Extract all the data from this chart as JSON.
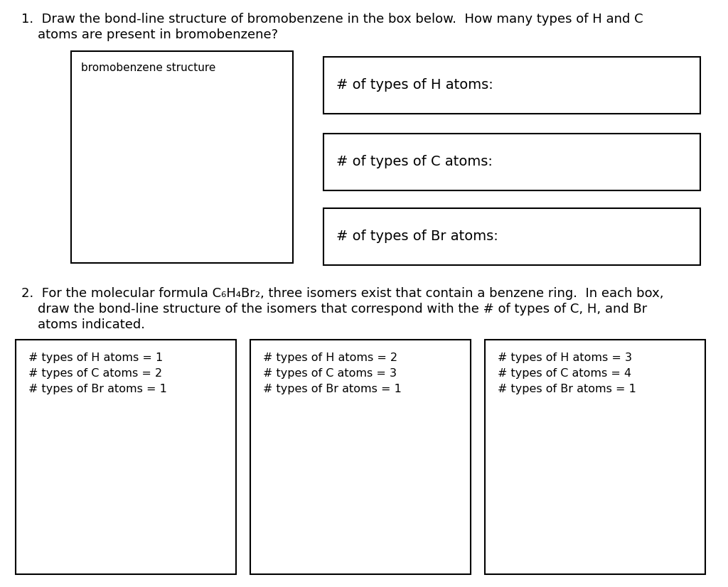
{
  "background_color": "#ffffff",
  "q1_line1": "1.  Draw the bond-line structure of bromobenzene in the box below.  How many types of H and C",
  "q1_line2": "    atoms are present in bromobenzene?",
  "q2_line1": "2.  For the molecular formula C₆H₄Br₂, three isomers exist that contain a benzene ring.  In each box,",
  "q2_line2": "    draw the bond-line structure of the isomers that correspond with the # of types of C, H, and Br",
  "q2_line3": "    atoms indicated.",
  "box1_label": "bromobenzene structure",
  "box_h_label": "# of types of H atoms:",
  "box_c_label": "# of types of C atoms:",
  "box_br_label": "# of types of Br atoms:",
  "isomer1_lines": [
    "# types of H atoms = 1",
    "# types of C atoms = 2",
    "# types of Br atoms = 1"
  ],
  "isomer2_lines": [
    "# types of H atoms = 2",
    "# types of C atoms = 3",
    "# types of Br atoms = 1"
  ],
  "isomer3_lines": [
    "# types of H atoms = 3",
    "# types of C atoms = 4",
    "# types of Br atoms = 1"
  ],
  "font_size_main": 13,
  "font_size_box_label": 11,
  "font_size_answer_box": 14,
  "font_size_isomer": 11.5
}
